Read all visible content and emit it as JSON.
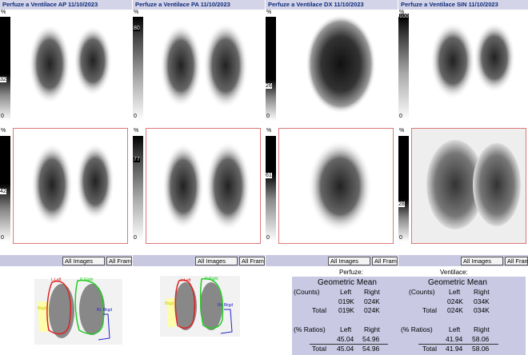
{
  "panels": [
    {
      "title": "Perfuze a Ventilace AP 11/10/2023",
      "scale_top": {
        "pct": "%",
        "mid": "32",
        "zero": "0"
      },
      "scale_bottom": {
        "pct": "%",
        "mid": "42",
        "zero": "0"
      }
    },
    {
      "title": "Perfuze a Ventilace PA 11/10/2023",
      "scale_top": {
        "pct": "%",
        "max": "80",
        "zero": "0"
      },
      "scale_bottom": {
        "pct": "%",
        "max": "77",
        "zero": "0"
      }
    },
    {
      "title": "Perfuze a Ventilace DX 11/10/2023",
      "scale_top": {
        "pct": "%",
        "mid": "26",
        "zero": "0"
      },
      "scale_bottom": {
        "pct": "%",
        "mid": "61",
        "zero": "0"
      }
    },
    {
      "title": "Perfuze a Ventilace SIN 11/10/2023",
      "scale_top": {
        "pct": "%",
        "max": "100",
        "zero": "0"
      },
      "scale_bottom": {
        "pct": "%",
        "mid": "28",
        "zero": "0"
      }
    }
  ],
  "buttons": {
    "all_images": "All Images",
    "all_frames": "All Fram"
  },
  "roi_labels": {
    "left": "L.Left",
    "right": "R.Right",
    "bkgd_left": "Bkgd",
    "bkgd_right": "Rt. Bkgd"
  },
  "results": {
    "perfusion_header": "Perfuze:",
    "ventilation_header": "Ventilace:",
    "perfusion": {
      "geo_title": "Geometric Mean",
      "counts_label": "(Counts)",
      "left_h": "Left",
      "right_h": "Right",
      "row1_left": "019K",
      "row1_right": "024K",
      "total_label": "Total",
      "total_left": "019K",
      "total_right": "024K",
      "ratios_label": "(% Ratios)",
      "ratios_left_h": "Left",
      "ratios_right_h": "Right",
      "ratio_left": "45.04",
      "ratio_right": "54.96",
      "ratio_total_label": "Total",
      "ratio_total_left": "45.04",
      "ratio_total_right": "54.96"
    },
    "ventilation": {
      "geo_title": "Geometric Mean",
      "counts_label": "(Counts)",
      "left_h": "Left",
      "right_h": "Right",
      "row1_left": "024K",
      "row1_right": "034K",
      "total_label": "Total",
      "total_left": "024K",
      "total_right": "034K",
      "ratios_label": "(% Ratios)",
      "ratios_left_h": "Left",
      "ratios_right_h": "Right",
      "ratio_left": "41.94",
      "ratio_right": "58.06",
      "ratio_total_label": "Total",
      "ratio_total_left": "41.94",
      "ratio_total_right": "58.06"
    }
  }
}
